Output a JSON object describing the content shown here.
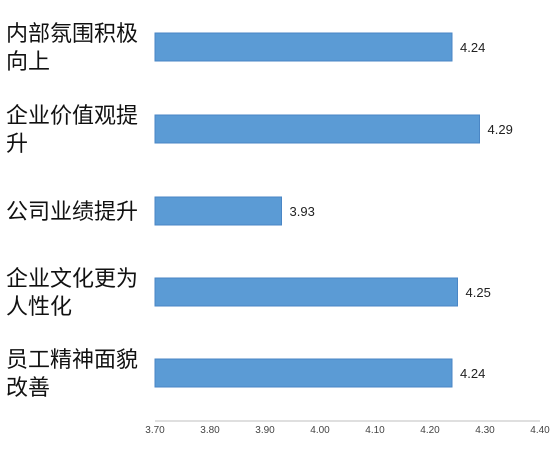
{
  "chart_data": {
    "type": "bar",
    "orientation": "horizontal",
    "title": "",
    "xlabel": "",
    "ylabel": "",
    "categories": [
      [
        "内部氛围积极",
        "向上"
      ],
      [
        "企业价值观提",
        "升"
      ],
      [
        "公司业绩提升"
      ],
      [
        "企业文化更为",
        "人性化"
      ],
      [
        "员工精神面貌",
        "改善"
      ]
    ],
    "values": [
      4.24,
      4.29,
      3.93,
      4.25,
      4.24
    ],
    "value_labels": [
      "4.24",
      "4.29",
      "3.93",
      "4.25",
      "4.24"
    ],
    "xlim": [
      3.7,
      4.4
    ],
    "xticks": [
      "3.70",
      "3.80",
      "3.90",
      "4.00",
      "4.10",
      "4.20",
      "4.30",
      "4.40"
    ],
    "grid": false,
    "legend": "none",
    "bar_color": "#5b9bd5",
    "bar_stroke": "#4a86c5"
  }
}
